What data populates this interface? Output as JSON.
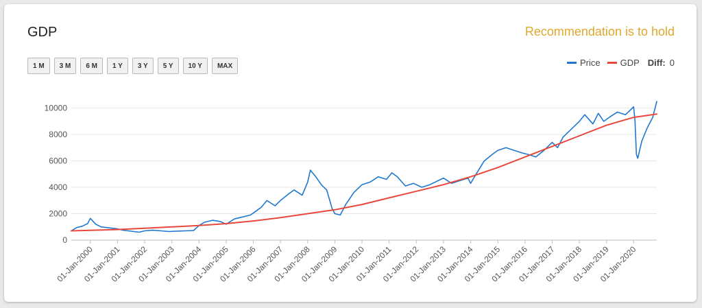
{
  "header": {
    "title": "GDP",
    "recommendation": "Recommendation is to hold"
  },
  "range_buttons": [
    "1 M",
    "3 M",
    "6 M",
    "1 Y",
    "3 Y",
    "5 Y",
    "10 Y",
    "MAX"
  ],
  "legend": {
    "diff_label": "Diff:",
    "diff_value": "0"
  },
  "colors": {
    "price": "#1f77d0",
    "gdp": "#e8473b",
    "recommendation": "#e0a82e",
    "grid": "#e6e6e6"
  },
  "chart_data": {
    "type": "line",
    "ylim": [
      0,
      10500
    ],
    "yticks": [
      0,
      2000,
      4000,
      6000,
      8000,
      10000
    ],
    "xticks": [
      "01-Jan-2000",
      "01-Jan-2001",
      "01-Jan-2002",
      "01-Jan-2003",
      "01-Jan-2004",
      "01-Jan-2005",
      "01-Jan-2006",
      "01-Jan-2007",
      "01-Jan-2008",
      "01-Jan-2009",
      "01-Jan-2010",
      "01-Jan-2011",
      "01-Jan-2012",
      "01-Jan-2013",
      "01-Jan-2014",
      "01-Jan-2015",
      "01-Jan-2016",
      "01-Jan-2017",
      "01-Jan-2018",
      "01-Jan-2019",
      "01-Jan-2020"
    ],
    "x_range": [
      1999.3,
      2020.85
    ],
    "grid": true,
    "legend_position": "top-right",
    "series": [
      {
        "name": "Price",
        "x": [
          1999.3,
          1999.5,
          1999.7,
          1999.9,
          2000.0,
          2000.2,
          2000.4,
          2000.6,
          2000.8,
          2001.0,
          2001.2,
          2001.4,
          2001.6,
          2001.8,
          2002.0,
          2002.3,
          2002.6,
          2002.9,
          2003.2,
          2003.5,
          2003.8,
          2004.0,
          2004.2,
          2004.5,
          2004.8,
          2005.0,
          2005.3,
          2005.6,
          2005.9,
          2006.1,
          2006.3,
          2006.5,
          2006.8,
          2007.0,
          2007.3,
          2007.5,
          2007.8,
          2008.0,
          2008.1,
          2008.3,
          2008.5,
          2008.7,
          2008.9,
          2009.0,
          2009.2,
          2009.4,
          2009.7,
          2010.0,
          2010.3,
          2010.6,
          2010.9,
          2011.1,
          2011.3,
          2011.6,
          2011.9,
          2012.2,
          2012.5,
          2012.8,
          2013.0,
          2013.3,
          2013.6,
          2013.9,
          2014.0,
          2014.2,
          2014.5,
          2014.8,
          2015.0,
          2015.3,
          2015.6,
          2015.9,
          2016.1,
          2016.4,
          2016.7,
          2017.0,
          2017.2,
          2017.4,
          2017.7,
          2018.0,
          2018.2,
          2018.5,
          2018.7,
          2018.9,
          2019.1,
          2019.4,
          2019.7,
          2019.9,
          2020.0,
          2020.05,
          2020.1,
          2020.15,
          2020.3,
          2020.5,
          2020.7,
          2020.85
        ],
        "y": [
          700,
          950,
          1050,
          1250,
          1650,
          1200,
          1000,
          950,
          900,
          850,
          750,
          700,
          650,
          600,
          700,
          750,
          700,
          650,
          680,
          700,
          720,
          1100,
          1350,
          1500,
          1400,
          1200,
          1600,
          1750,
          1900,
          2200,
          2500,
          3000,
          2600,
          3000,
          3500,
          3800,
          3400,
          4400,
          5300,
          4800,
          4200,
          3800,
          2400,
          2000,
          1900,
          2700,
          3600,
          4200,
          4400,
          4800,
          4600,
          5100,
          4800,
          4100,
          4300,
          4000,
          4200,
          4500,
          4700,
          4300,
          4500,
          4700,
          4300,
          5000,
          6000,
          6500,
          6800,
          7000,
          6800,
          6600,
          6500,
          6300,
          6800,
          7400,
          7000,
          7800,
          8400,
          9000,
          9500,
          8800,
          9600,
          9000,
          9300,
          9700,
          9500,
          9900,
          10100,
          9000,
          6500,
          6200,
          7500,
          8500,
          9300,
          10500
        ]
      },
      {
        "name": "GDP",
        "x": [
          1999.3,
          2001.0,
          2002.0,
          2003.0,
          2004.0,
          2005.0,
          2006.0,
          2007.0,
          2008.0,
          2009.0,
          2010.0,
          2011.0,
          2012.0,
          2013.0,
          2014.0,
          2015.0,
          2016.0,
          2017.0,
          2018.0,
          2019.0,
          2020.0,
          2020.85
        ],
        "y": [
          700,
          800,
          900,
          1000,
          1100,
          1250,
          1450,
          1700,
          2000,
          2300,
          2700,
          3200,
          3700,
          4200,
          4800,
          5500,
          6300,
          7100,
          7900,
          8700,
          9300,
          9550
        ]
      }
    ]
  }
}
